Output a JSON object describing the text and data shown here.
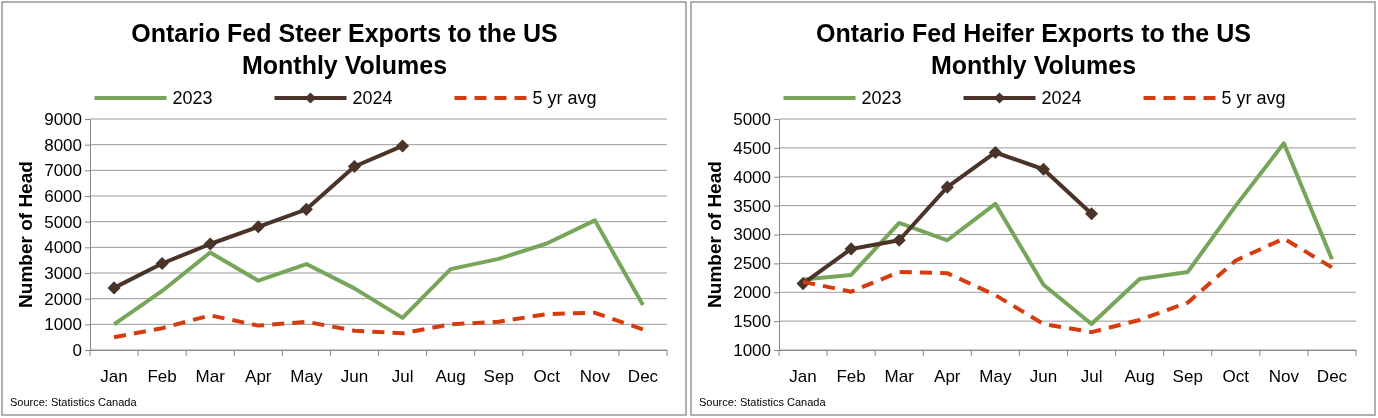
{
  "chart_data": [
    {
      "type": "line",
      "title": "Ontario Fed Steer Exports to the US",
      "subtitle": "Monthly Volumes",
      "ylabel": "Number of Head",
      "categories": [
        "Jan",
        "Feb",
        "Mar",
        "Apr",
        "May",
        "Jun",
        "Jul",
        "Aug",
        "Sep",
        "Oct",
        "Nov",
        "Dec"
      ],
      "series": [
        {
          "name": "2023",
          "color": "#77a65a",
          "line_style": "solid",
          "marker": "none",
          "values": [
            1000,
            2300,
            3800,
            2700,
            3350,
            2400,
            1250,
            3150,
            3550,
            4150,
            5050,
            1750
          ]
        },
        {
          "name": "2024",
          "color": "#4a3328",
          "line_style": "solid",
          "marker": "diamond",
          "values": [
            2420,
            3370,
            4130,
            4800,
            5480,
            7150,
            7950,
            null,
            null,
            null,
            null,
            null
          ]
        },
        {
          "name": "5 yr avg",
          "color": "#d43d0f",
          "line_style": "dashed",
          "marker": "none",
          "values": [
            500,
            850,
            1350,
            950,
            1100,
            750,
            650,
            1000,
            1100,
            1400,
            1450,
            800
          ]
        }
      ],
      "ylim": [
        0,
        9000
      ],
      "yticks": [
        0,
        1000,
        2000,
        3000,
        4000,
        5000,
        6000,
        7000,
        8000,
        9000
      ],
      "grid": "y",
      "legend": "top",
      "annotations": [
        "Source: Statistics Canada"
      ]
    },
    {
      "type": "line",
      "title": "Ontario Fed Heifer Exports to the US",
      "subtitle": "Monthly Volumes",
      "ylabel": "Number of Head",
      "categories": [
        "Jan",
        "Feb",
        "Mar",
        "Apr",
        "May",
        "Jun",
        "Jul",
        "Aug",
        "Sep",
        "Oct",
        "Nov",
        "Dec"
      ],
      "series": [
        {
          "name": "2023",
          "color": "#77a65a",
          "line_style": "solid",
          "marker": "none",
          "values": [
            2220,
            2300,
            3200,
            2900,
            3530,
            2130,
            1450,
            2230,
            2350,
            3500,
            4580,
            2570
          ]
        },
        {
          "name": "2024",
          "color": "#4a3328",
          "line_style": "solid",
          "marker": "diamond",
          "values": [
            2150,
            2750,
            2900,
            3820,
            4420,
            4130,
            3360,
            null,
            null,
            null,
            null,
            null
          ]
        },
        {
          "name": "5 yr avg",
          "color": "#d43d0f",
          "line_style": "dashed",
          "marker": "none",
          "values": [
            2180,
            2010,
            2350,
            2330,
            1950,
            1450,
            1310,
            1520,
            1820,
            2550,
            2930,
            2430
          ]
        }
      ],
      "ylim": [
        1000,
        5000
      ],
      "yticks": [
        1000,
        1500,
        2000,
        2500,
        3000,
        3500,
        4000,
        4500,
        5000
      ],
      "grid": "y",
      "legend": "top",
      "annotations": [
        "Source: Statistics Canada"
      ]
    }
  ]
}
